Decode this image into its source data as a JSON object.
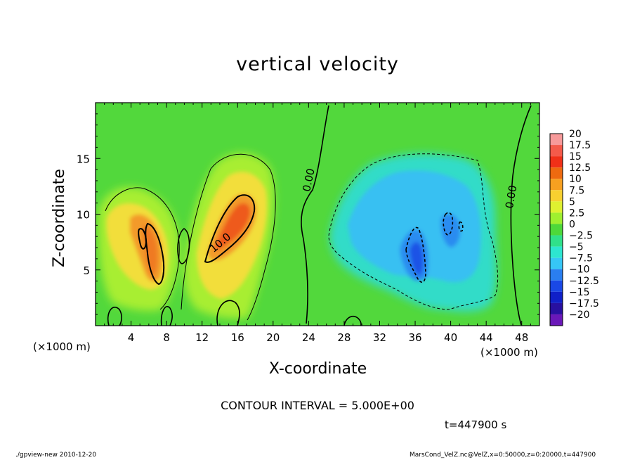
{
  "chart_data": {
    "type": "heatmap",
    "title": "vertical velocity",
    "xlabel": "X-coordinate",
    "ylabel": "Z-coordinate",
    "x_unit": "(×1000 m)",
    "xlim": [
      0,
      50
    ],
    "ylim": [
      0,
      20
    ],
    "x_ticks": [
      4,
      8,
      12,
      16,
      20,
      24,
      28,
      32,
      36,
      40,
      44,
      48
    ],
    "y_ticks": [
      5,
      10,
      15
    ],
    "colorbar": {
      "levels": [
        "20",
        "17.5",
        "15",
        "12.5",
        "10",
        "7.5",
        "5",
        "2.5",
        "0",
        "−2.5",
        "−5",
        "−7.5",
        "−10",
        "−12.5",
        "−15",
        "−17.5",
        "−20"
      ],
      "colors": [
        "#f79a9a",
        "#f45a4a",
        "#f03018",
        "#ee6a10",
        "#f7a020",
        "#f7d030",
        "#dff030",
        "#9fef2f",
        "#4dd83a",
        "#30e08a",
        "#2de6d0",
        "#36c6f6",
        "#2a7ef0",
        "#1a48e6",
        "#1020c8",
        "#2810a0",
        "#6a18b8"
      ]
    },
    "contour_labels": [
      "10.0",
      "0.00",
      "0.00"
    ],
    "features": [
      {
        "name": "updraft",
        "center_x": 15,
        "center_z": 9,
        "peak": 12.5
      },
      {
        "name": "updraft",
        "center_x": 6,
        "center_z": 7.5,
        "peak": 10
      },
      {
        "name": "downdraft",
        "center_x": 36,
        "center_z": 7,
        "peak": -10
      }
    ],
    "contour_interval": "CONTOUR INTERVAL = 5.000E+00",
    "time": "t=447900  s"
  },
  "footer": {
    "left": "./gpview-new   2010-12-20",
    "right": "MarsCond_VelZ.nc@VelZ,x=0:50000,z=0:20000,t=447900"
  }
}
